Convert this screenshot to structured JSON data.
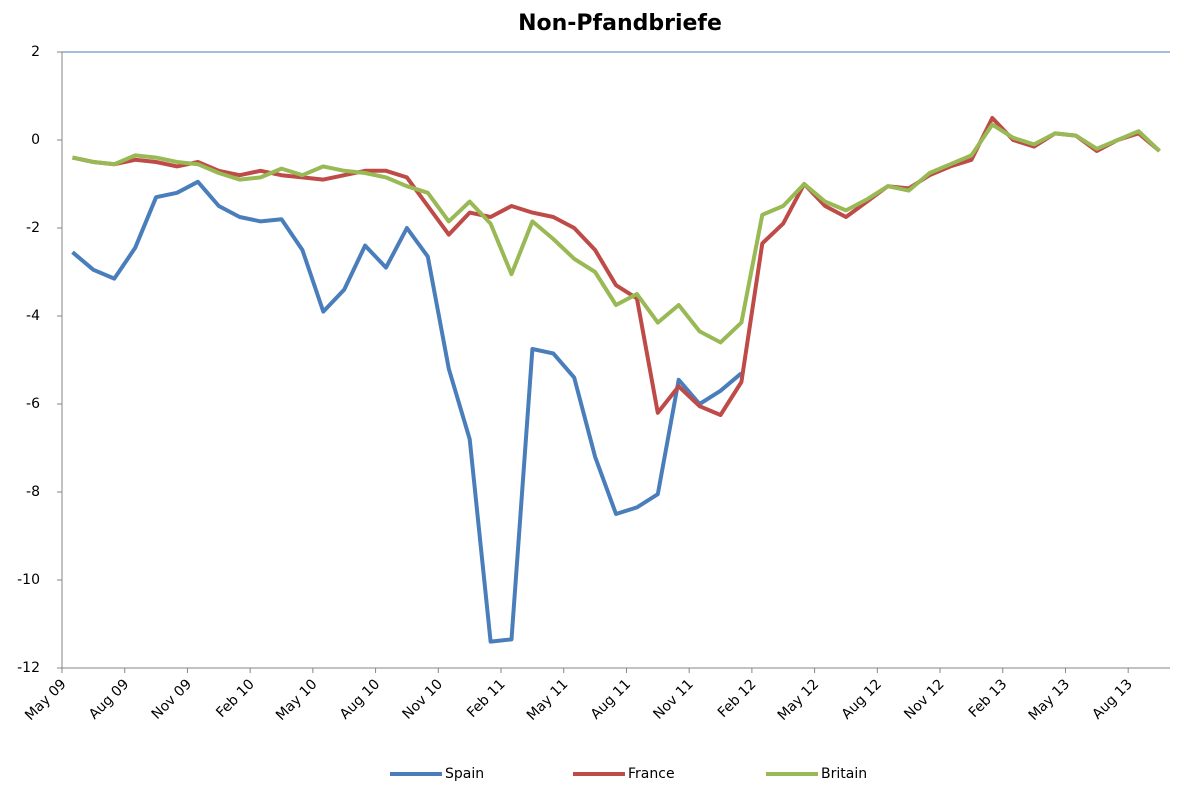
{
  "chart_data": {
    "type": "line",
    "title": "Non-Pfandbriefe",
    "categories": [
      "May 09",
      null,
      null,
      "Aug 09",
      null,
      null,
      "Nov 09",
      null,
      null,
      "Feb 10",
      null,
      null,
      "May 10",
      null,
      null,
      "Aug 10",
      null,
      null,
      "Nov 10",
      null,
      null,
      "Feb 11",
      null,
      null,
      "May 11",
      null,
      null,
      "Aug 11",
      null,
      null,
      "Nov 11",
      null,
      null,
      "Feb 12",
      null,
      null,
      "May 12",
      null,
      null,
      "Aug 12",
      null,
      null,
      "Nov 12",
      null,
      null,
      "Feb 13",
      null,
      null,
      "May 13",
      null,
      null,
      "Aug 13",
      null
    ],
    "series": [
      {
        "name": "Spain",
        "color": "#4a7ebb",
        "values": [
          -2.55,
          -2.95,
          -3.15,
          -2.45,
          -1.3,
          -1.2,
          -0.95,
          -1.5,
          -1.75,
          -1.85,
          -1.8,
          -2.5,
          -3.9,
          -3.4,
          -2.4,
          -2.9,
          -2.0,
          -2.65,
          -5.2,
          -6.8,
          -11.4,
          -11.35,
          -4.75,
          -4.85,
          -5.4,
          -7.2,
          -8.5,
          -8.35,
          -8.05,
          -5.45,
          -6.0,
          -5.7,
          -5.3,
          null,
          null,
          null,
          null,
          null,
          null,
          null,
          null,
          null,
          null,
          null,
          null,
          null,
          null,
          null,
          null,
          null,
          null,
          null,
          null
        ]
      },
      {
        "name": "France",
        "color": "#be4b48",
        "values": [
          -0.4,
          -0.5,
          -0.55,
          -0.45,
          -0.5,
          -0.6,
          -0.5,
          -0.7,
          -0.8,
          -0.7,
          -0.8,
          -0.85,
          -0.9,
          -0.8,
          -0.7,
          -0.7,
          -0.85,
          -1.5,
          -2.15,
          -1.65,
          -1.75,
          -1.5,
          -1.65,
          -1.75,
          -2.0,
          -2.5,
          -3.3,
          -3.6,
          -6.2,
          -5.6,
          -6.05,
          -6.25,
          -5.5,
          -2.35,
          -1.9,
          -1.0,
          -1.5,
          -1.75,
          -1.4,
          -1.05,
          -1.1,
          -0.8,
          -0.6,
          -0.45,
          0.5,
          0.0,
          -0.15,
          0.15,
          0.1,
          -0.25,
          0.0,
          0.15,
          -0.25
        ]
      },
      {
        "name": "Britain",
        "color": "#98b954",
        "values": [
          -0.4,
          -0.5,
          -0.55,
          -0.35,
          -0.4,
          -0.5,
          -0.55,
          -0.75,
          -0.9,
          -0.85,
          -0.65,
          -0.8,
          -0.6,
          -0.7,
          -0.75,
          -0.85,
          -1.05,
          -1.2,
          -1.85,
          -1.4,
          -1.9,
          -3.05,
          -1.85,
          -2.25,
          -2.7,
          -3.0,
          -3.75,
          -3.5,
          -4.15,
          -3.75,
          -4.35,
          -4.6,
          -4.15,
          -1.7,
          -1.5,
          -1.0,
          -1.4,
          -1.6,
          -1.35,
          -1.05,
          -1.15,
          -0.75,
          -0.55,
          -0.35,
          0.35,
          0.05,
          -0.1,
          0.15,
          0.1,
          -0.2,
          0.0,
          0.2,
          -0.25
        ]
      }
    ],
    "ylim": [
      -12,
      2
    ],
    "yticks": [
      -12,
      -10,
      -8,
      -6,
      -4,
      -2,
      0,
      2
    ],
    "grid": false,
    "legend": "bottom"
  }
}
